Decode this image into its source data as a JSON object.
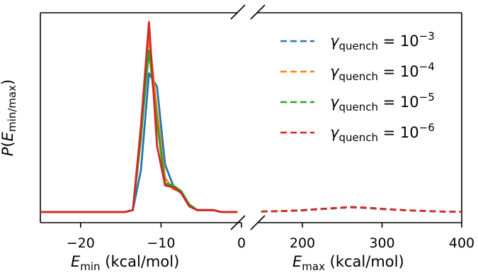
{
  "chart_data": [
    {
      "type": "line",
      "panel": "left",
      "ylabel": "P(E_min/max)",
      "xlabel": {
        "symbol": "E",
        "subscript": "min",
        "unit": "(kcal/mol)"
      },
      "xlim": [
        -25,
        0
      ],
      "xticks": [
        -20,
        -10,
        0
      ],
      "xtick_labels": [
        "−20",
        "−10",
        "0"
      ],
      "ylim": [
        0,
        1.06
      ],
      "series": [
        {
          "name_key": "-3",
          "color": "#1f77b4",
          "x": [
            -25,
            -14.5,
            -13.5,
            -12.5,
            -11.5,
            -10.5,
            -9.5,
            -8.5,
            -7.5,
            -6.5,
            -5.5,
            -4.5,
            -3.5,
            -2.5,
            -0.5
          ],
          "y": [
            0,
            0,
            0.01,
            0.22,
            0.73,
            0.66,
            0.25,
            0.14,
            0.11,
            0.04,
            0.01,
            0.01,
            0.01,
            0,
            0
          ]
        },
        {
          "name_key": "-4",
          "color": "#ff7f0e",
          "x": [
            -25,
            -14.5,
            -13.5,
            -12.5,
            -11.5,
            -10.5,
            -9.5,
            -8.5,
            -7.5,
            -6.5,
            -5.5,
            -4.5,
            -3.5,
            -2.5,
            -0.5
          ],
          "y": [
            0,
            0,
            0.01,
            0.38,
            0.93,
            0.53,
            0.18,
            0.12,
            0.11,
            0.04,
            0.01,
            0.01,
            0.01,
            0,
            0
          ]
        },
        {
          "name_key": "-5",
          "color": "#2ca02c",
          "x": [
            -25,
            -14.5,
            -13.5,
            -12.5,
            -11.5,
            -10.5,
            -9.5,
            -8.5,
            -7.5,
            -6.5,
            -5.5,
            -4.5,
            -3.5,
            -2.5,
            -0.5
          ],
          "y": [
            0,
            0,
            0.01,
            0.4,
            0.85,
            0.47,
            0.15,
            0.14,
            0.11,
            0.04,
            0.01,
            0.01,
            0.01,
            0,
            0
          ]
        },
        {
          "name_key": "-6",
          "color": "#d62728",
          "x": [
            -25,
            -14.5,
            -13.5,
            -12.5,
            -11.5,
            -10.5,
            -9.5,
            -8.5,
            -7.5,
            -6.5,
            -5.5,
            -4.5,
            -3.5,
            -2.5,
            -0.5
          ],
          "y": [
            0,
            0,
            0.01,
            0.45,
            1.0,
            0.35,
            0.14,
            0.13,
            0.1,
            0.03,
            0.01,
            0.01,
            0.01,
            0,
            0
          ]
        }
      ]
    },
    {
      "type": "line",
      "panel": "right",
      "line_style": "dashed",
      "xlabel": {
        "symbol": "E",
        "subscript": "max",
        "unit": "(kcal/mol)"
      },
      "xlim": [
        120,
        400
      ],
      "xticks": [
        200,
        300,
        400
      ],
      "xtick_labels": [
        "200",
        "300",
        "400"
      ],
      "ylim": [
        0,
        1.06
      ],
      "series": [
        {
          "name_key": "-3",
          "color": "#1f77b4",
          "x": [
            120,
            150,
            180,
            200,
            220,
            240,
            260,
            280,
            300,
            320,
            340,
            360,
            380,
            400
          ],
          "y": [
            0,
            0.003,
            0.005,
            0.008,
            0.014,
            0.019,
            0.024,
            0.021,
            0.015,
            0.011,
            0.007,
            0.004,
            0.002,
            0.001
          ]
        },
        {
          "name_key": "-4",
          "color": "#ff7f0e",
          "x": [
            120,
            150,
            180,
            200,
            220,
            240,
            260,
            280,
            300,
            320,
            340,
            360,
            380,
            400
          ],
          "y": [
            0,
            0.003,
            0.005,
            0.009,
            0.015,
            0.02,
            0.025,
            0.022,
            0.016,
            0.011,
            0.007,
            0.004,
            0.002,
            0.001
          ]
        },
        {
          "name_key": "-5",
          "color": "#2ca02c",
          "x": [
            120,
            150,
            180,
            200,
            220,
            240,
            260,
            280,
            300,
            320,
            340,
            360,
            380,
            400
          ],
          "y": [
            0,
            0.003,
            0.006,
            0.009,
            0.015,
            0.021,
            0.026,
            0.023,
            0.017,
            0.012,
            0.008,
            0.005,
            0.002,
            0.001
          ]
        },
        {
          "name_key": "-6",
          "color": "#d62728",
          "x": [
            120,
            150,
            180,
            200,
            220,
            240,
            260,
            280,
            300,
            320,
            340,
            360,
            380,
            400
          ],
          "y": [
            0,
            0.003,
            0.006,
            0.01,
            0.016,
            0.021,
            0.027,
            0.023,
            0.017,
            0.012,
            0.008,
            0.005,
            0.002,
            0.001
          ]
        }
      ]
    }
  ],
  "legend": {
    "placement": "upper right of right panel",
    "symbol": "γ",
    "subscript": "quench",
    "equals": " = 10",
    "entries": [
      {
        "exponent": "−3",
        "color": "#1f77b4"
      },
      {
        "exponent": "−4",
        "color": "#ff7f0e"
      },
      {
        "exponent": "−5",
        "color": "#2ca02c"
      },
      {
        "exponent": "−6",
        "color": "#d62728"
      }
    ]
  }
}
